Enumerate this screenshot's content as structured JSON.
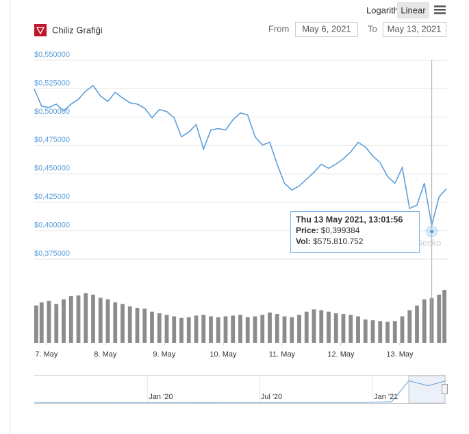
{
  "chart_data": {
    "type": "line",
    "title": "Chiliz Grafiği",
    "scale_buttons": [
      "Logarithmic",
      "Linear"
    ],
    "active_scale": "Linear",
    "range": {
      "from_label": "From",
      "from": "May 6, 2021",
      "to_label": "To",
      "to": "May 13, 2021"
    },
    "x": [
      "2021-05-06T19:00",
      "2021-05-06T22:00",
      "2021-05-07T01:00",
      "2021-05-07T04:00",
      "2021-05-07T07:00",
      "2021-05-07T10:00",
      "2021-05-07T13:00",
      "2021-05-07T16:00",
      "2021-05-07T19:00",
      "2021-05-07T22:00",
      "2021-05-08T01:00",
      "2021-05-08T04:00",
      "2021-05-08T07:00",
      "2021-05-08T10:00",
      "2021-05-08T13:00",
      "2021-05-08T16:00",
      "2021-05-08T19:00",
      "2021-05-08T22:00",
      "2021-05-09T01:00",
      "2021-05-09T04:00",
      "2021-05-09T07:00",
      "2021-05-09T10:00",
      "2021-05-09T13:00",
      "2021-05-09T16:00",
      "2021-05-09T19:00",
      "2021-05-09T22:00",
      "2021-05-10T01:00",
      "2021-05-10T04:00",
      "2021-05-10T07:00",
      "2021-05-10T10:00",
      "2021-05-10T13:00",
      "2021-05-10T16:00",
      "2021-05-10T19:00",
      "2021-05-10T22:00",
      "2021-05-11T01:00",
      "2021-05-11T04:00",
      "2021-05-11T07:00",
      "2021-05-11T10:00",
      "2021-05-11T13:00",
      "2021-05-11T16:00",
      "2021-05-11T19:00",
      "2021-05-11T22:00",
      "2021-05-12T01:00",
      "2021-05-12T04:00",
      "2021-05-12T07:00",
      "2021-05-12T10:00",
      "2021-05-12T13:00",
      "2021-05-12T16:00",
      "2021-05-12T19:00",
      "2021-05-12T22:00",
      "2021-05-13T01:00",
      "2021-05-13T04:00",
      "2021-05-13T07:00",
      "2021-05-13T10:00",
      "2021-05-13T13:00",
      "2021-05-13T16:00",
      "2021-05-13T19:00"
    ],
    "xlim": [
      "2021-05-06T19:00",
      "2021-05-13T19:00"
    ],
    "xticks": [
      {
        "value": "2021-05-07T00:00",
        "label": "7. May"
      },
      {
        "value": "2021-05-08T00:00",
        "label": "8. May"
      },
      {
        "value": "2021-05-09T00:00",
        "label": "9. May"
      },
      {
        "value": "2021-05-10T00:00",
        "label": "10. May"
      },
      {
        "value": "2021-05-11T00:00",
        "label": "11. May"
      },
      {
        "value": "2021-05-12T00:00",
        "label": "12. May"
      },
      {
        "value": "2021-05-13T00:00",
        "label": "13. May"
      }
    ],
    "series": [
      {
        "type": "line",
        "color": "#5b9fdb",
        "values": [
          0.5248,
          0.5097,
          0.5085,
          0.5115,
          0.5055,
          0.5115,
          0.5157,
          0.523,
          0.5278,
          0.5187,
          0.5139,
          0.5218,
          0.5169,
          0.5127,
          0.5115,
          0.5079,
          0.4995,
          0.5067,
          0.5049,
          0.4995,
          0.4827,
          0.4869,
          0.4935,
          0.4719,
          0.4887,
          0.4899,
          0.4887,
          0.4977,
          0.5037,
          0.5019,
          0.4827,
          0.4755,
          0.4779,
          0.4586,
          0.4418,
          0.4358,
          0.4394,
          0.4454,
          0.4514,
          0.4586,
          0.455,
          0.4586,
          0.4634,
          0.4694,
          0.4779,
          0.4737,
          0.4658,
          0.4598,
          0.4478,
          0.4418,
          0.4556,
          0.4196,
          0.4226,
          0.4418,
          0.4046,
          0.4298,
          0.437
        ]
      },
      {
        "type": "bar",
        "axis": "y2",
        "color": "#8c8c8c",
        "values": [
          480000000,
          520000000,
          540000000,
          500000000,
          560000000,
          600000000,
          610000000,
          640000000,
          620000000,
          580000000,
          560000000,
          520000000,
          500000000,
          470000000,
          450000000,
          440000000,
          400000000,
          380000000,
          360000000,
          340000000,
          320000000,
          330000000,
          350000000,
          360000000,
          340000000,
          330000000,
          340000000,
          350000000,
          360000000,
          330000000,
          340000000,
          360000000,
          390000000,
          370000000,
          340000000,
          330000000,
          360000000,
          400000000,
          430000000,
          420000000,
          400000000,
          380000000,
          370000000,
          360000000,
          340000000,
          300000000,
          290000000,
          280000000,
          270000000,
          280000000,
          340000000,
          420000000,
          480000000,
          560000000,
          576000000,
          620000000,
          680000000
        ]
      }
    ],
    "ylim": [
      0.375,
      0.55
    ],
    "yticks": [
      {
        "value": 0.375,
        "label": "$0,375000"
      },
      {
        "value": 0.4,
        "label": "$0,400000"
      },
      {
        "value": 0.425,
        "label": "$0,425000"
      },
      {
        "value": 0.45,
        "label": "$0,450000"
      },
      {
        "value": 0.475,
        "label": "$0,475000"
      },
      {
        "value": 0.5,
        "label": "$0,500000"
      },
      {
        "value": 0.525,
        "label": "$0,525000"
      },
      {
        "value": 0.55,
        "label": "$0,550000"
      }
    ],
    "y2lim": [
      0,
      900000000
    ],
    "grid": true,
    "watermark": "CoinGecko",
    "tooltip": {
      "x": "2021-05-13T13:01:56",
      "title": "Thu 13 May 2021, 13:01:56",
      "price_label": "Price:",
      "price": 0.399384,
      "price_text": "$0,399384",
      "vol_label": "Vol:",
      "vol": 575810752,
      "vol_text": "$575.810.752"
    },
    "navigator": {
      "x": [
        "2019-07",
        "2019-08",
        "2019-09",
        "2019-10",
        "2019-11",
        "2019-12",
        "2020-01",
        "2020-02",
        "2020-03",
        "2020-04",
        "2020-05",
        "2020-06",
        "2020-07",
        "2020-08",
        "2020-09",
        "2020-10",
        "2020-11",
        "2020-12",
        "2021-01",
        "2021-02",
        "2021-03",
        "2021-04",
        "2021-05"
      ],
      "values": [
        0.02,
        0.018,
        0.015,
        0.013,
        0.012,
        0.011,
        0.01,
        0.012,
        0.008,
        0.007,
        0.009,
        0.012,
        0.015,
        0.018,
        0.016,
        0.017,
        0.015,
        0.017,
        0.02,
        0.03,
        0.45,
        0.35,
        0.45
      ],
      "xlim": [
        "2019-07",
        "2021-05"
      ],
      "ylim": [
        0,
        0.55
      ],
      "xticks": [
        {
          "value": "2020-01",
          "label": "Jan '20"
        },
        {
          "value": "2020-07",
          "label": "Jul '20"
        },
        {
          "value": "2021-01",
          "label": "Jan '21"
        }
      ]
    }
  }
}
